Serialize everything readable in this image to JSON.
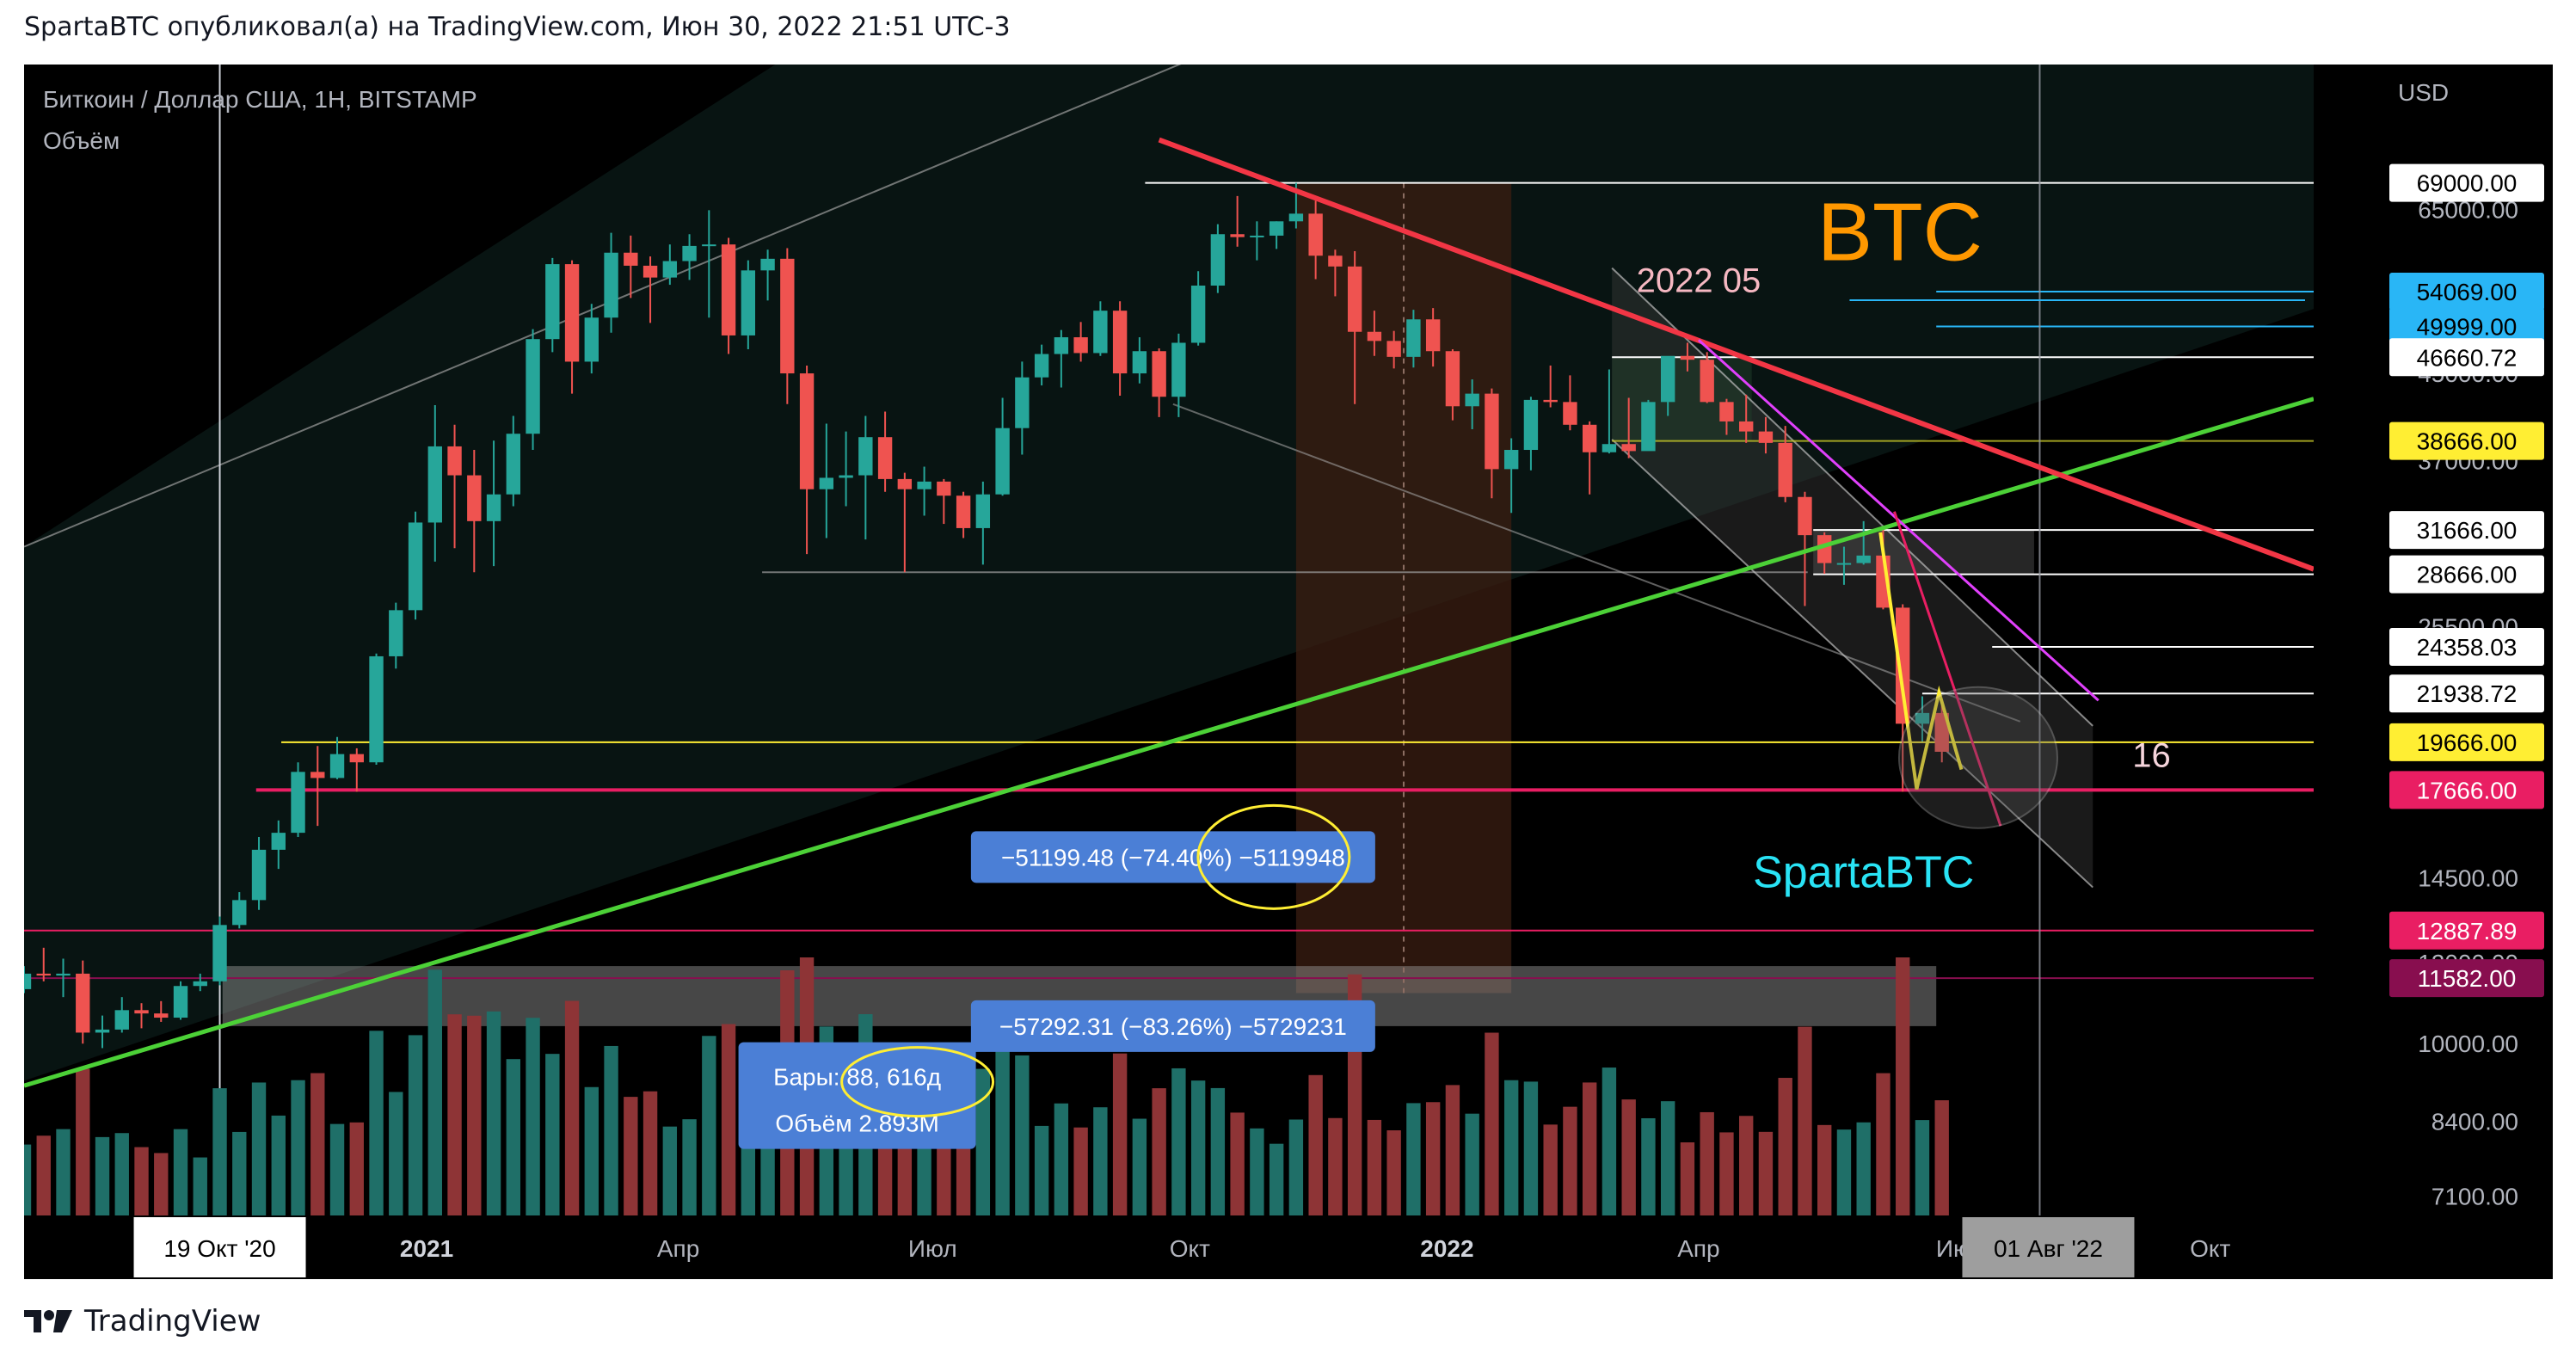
{
  "header": "SpartaBTC опубликовал(а) на TradingView.com, Июн 30, 2022 21:51 UTC-3",
  "footer_brand": "TradingView",
  "logo_icon": "tradingview-logo-icon",
  "colors": {
    "up": "#26a69a",
    "down": "#ef5350",
    "vol_up": "#1f6f68",
    "vol_down": "#8e3436",
    "trend_red": "#f23645",
    "trend_green": "#4cd137",
    "magenta": "#e040fb",
    "yellow": "#ffee33",
    "btc": "#ff9800",
    "sparta": "#29e3f5",
    "label_blue": "#4b7fd6",
    "pink": "#e91e63"
  },
  "chart_data": {
    "type": "candlestick",
    "symbol_line": "Биткоин / Доллар США, 1Н, BITSTAMP",
    "volume_label": "Объём",
    "currency": "USD",
    "y_scale": "log",
    "ylim": [
      6800,
      90000
    ],
    "x_start": "2020-08-10",
    "x_end": "2022-11-07",
    "x_ticks": [
      {
        "label": "2021",
        "date": "2021-01-01",
        "bold": true
      },
      {
        "label": "Апр",
        "date": "2021-04-01"
      },
      {
        "label": "Июл",
        "date": "2021-07-01"
      },
      {
        "label": "Окт",
        "date": "2021-10-01"
      },
      {
        "label": "2022",
        "date": "2022-01-01",
        "bold": true
      },
      {
        "label": "Апр",
        "date": "2022-04-01"
      },
      {
        "label": "Окт",
        "date": "2022-10-01"
      }
    ],
    "x_marker": {
      "label": "19 Окт '20",
      "date": "2020-10-19"
    },
    "x_cursor": {
      "label": "01 Авг '22",
      "date": "2022-08-01",
      "partial": "Ию"
    },
    "y_ticks": [
      65000,
      45000,
      37000,
      25500,
      14500,
      12000,
      10000,
      8400,
      7100
    ],
    "y_tick_labels": [
      "65000.00",
      "45000.00",
      "37000.00",
      "25500.00",
      "14500.00",
      "12000.00",
      "10000.00",
      "8400.00",
      "7100.00"
    ],
    "price_levels": [
      {
        "value": 69000,
        "label": "69000.00",
        "bg": "#ffffff",
        "fg": "#000000",
        "line": "#ffffff",
        "from": "2021-09-15"
      },
      {
        "value": 54069,
        "label": "54069.00",
        "bg": "#29b6f6",
        "fg": "#000000",
        "line": "#29b6f6",
        "from": "2022-06-25"
      },
      {
        "value": 49999,
        "label": "49999.00",
        "bg": "#29b6f6",
        "fg": "#000000",
        "line": "#29b6f6",
        "from": "2022-06-25"
      },
      {
        "value": 46660.72,
        "label": "46660.72",
        "bg": "#ffffff",
        "fg": "#000000",
        "line": "#ffffff",
        "from": "2022-03-01"
      },
      {
        "value": 38666,
        "label": "38666.00",
        "bg": "#ffee33",
        "fg": "#000000",
        "line": "#c6c628",
        "from": "2022-03-01"
      },
      {
        "value": 31666,
        "label": "31666.00",
        "bg": "#ffffff",
        "fg": "#000000",
        "line": "#ffffff",
        "from": "2022-05-12"
      },
      {
        "value": 28666,
        "label": "28666.00",
        "bg": "#ffffff",
        "fg": "#000000",
        "line": "#ffffff",
        "from": "2022-05-12"
      },
      {
        "value": 24358.03,
        "label": "24358.03",
        "bg": "#ffffff",
        "fg": "#000000",
        "line": "#ffffff",
        "from": "2022-07-15"
      },
      {
        "value": 21938.72,
        "label": "21938.72",
        "bg": "#ffffff",
        "fg": "#000000",
        "line": "#ffffff",
        "from": "2022-06-20"
      },
      {
        "value": 19666,
        "label": "19666.00",
        "bg": "#ffee33",
        "fg": "#000000",
        "line": "#ffee33",
        "from": "2020-11-10"
      },
      {
        "value": 17666,
        "label": "17666.00",
        "bg": "#e91e63",
        "fg": "#ffffff",
        "line": "#e91e63",
        "from": "2020-11-01"
      },
      {
        "value": 12887.89,
        "label": "12887.89",
        "bg": "#e91e63",
        "fg": "#ffffff",
        "line": "#e91e63",
        "from": "2020-08-10"
      },
      {
        "value": 11582,
        "label": "11582.00",
        "bg": "#880e4f",
        "fg": "#ffffff",
        "line": "#880e4f",
        "from": "2020-08-10"
      }
    ],
    "candles": [
      [
        "2020-08-10",
        11300,
        11900,
        11200,
        11700
      ],
      [
        "2020-08-17",
        11700,
        12400,
        11500,
        11650
      ],
      [
        "2020-08-24",
        11650,
        12100,
        11100,
        11700
      ],
      [
        "2020-08-31",
        11700,
        12050,
        10000,
        10250
      ],
      [
        "2020-09-07",
        10250,
        10650,
        9900,
        10320
      ],
      [
        "2020-09-14",
        10320,
        11100,
        10250,
        10780
      ],
      [
        "2020-09-21",
        10780,
        10950,
        10350,
        10700
      ],
      [
        "2020-09-28",
        10700,
        11000,
        10500,
        10600
      ],
      [
        "2020-10-05",
        10600,
        11500,
        10550,
        11380
      ],
      [
        "2020-10-12",
        11380,
        11700,
        11250,
        11500
      ],
      [
        "2020-10-19",
        11500,
        13300,
        11400,
        13050
      ],
      [
        "2020-10-26",
        13050,
        14050,
        12950,
        13800
      ],
      [
        "2020-11-02",
        13800,
        15900,
        13500,
        15450
      ],
      [
        "2020-11-09",
        15450,
        16500,
        14800,
        16050
      ],
      [
        "2020-11-16",
        16050,
        18800,
        15900,
        18400
      ],
      [
        "2020-11-23",
        18400,
        19500,
        16300,
        18150
      ],
      [
        "2020-11-30",
        18150,
        19900,
        18100,
        19150
      ],
      [
        "2020-12-07",
        19150,
        19400,
        17600,
        18800
      ],
      [
        "2020-12-14",
        18800,
        24000,
        18700,
        23850
      ],
      [
        "2020-12-21",
        23850,
        26900,
        23200,
        26450
      ],
      [
        "2020-12-28",
        26450,
        33000,
        25900,
        32200
      ],
      [
        "2021-01-04",
        32200,
        41900,
        29500,
        38200
      ],
      [
        "2021-01-11",
        38200,
        40100,
        30400,
        35800
      ],
      [
        "2021-01-18",
        35800,
        37900,
        28800,
        32300
      ],
      [
        "2021-01-25",
        32300,
        38700,
        29200,
        34300
      ],
      [
        "2021-02-01",
        34300,
        40900,
        33400,
        39300
      ],
      [
        "2021-02-08",
        39300,
        49700,
        37900,
        48600
      ],
      [
        "2021-02-15",
        48600,
        58300,
        47200,
        57500
      ],
      [
        "2021-02-22",
        57500,
        58000,
        43000,
        46200
      ],
      [
        "2021-03-01",
        46200,
        52600,
        45000,
        51000
      ],
      [
        "2021-03-08",
        51000,
        61700,
        49300,
        59000
      ],
      [
        "2021-03-15",
        59000,
        61300,
        53300,
        57300
      ],
      [
        "2021-03-22",
        57300,
        58500,
        50400,
        55800
      ],
      [
        "2021-03-29",
        55800,
        60100,
        54900,
        57900
      ],
      [
        "2021-04-05",
        57900,
        61500,
        55500,
        59900
      ],
      [
        "2021-04-12",
        59900,
        64900,
        51000,
        60100
      ],
      [
        "2021-04-19",
        60100,
        61000,
        47000,
        49000
      ],
      [
        "2021-04-26",
        49000,
        58000,
        47500,
        56700
      ],
      [
        "2021-05-03",
        56700,
        59400,
        53000,
        58200
      ],
      [
        "2021-05-10",
        58200,
        59600,
        42000,
        45000
      ],
      [
        "2021-05-17",
        45000,
        45800,
        30000,
        34700
      ],
      [
        "2021-05-24",
        34700,
        40200,
        31100,
        35600
      ],
      [
        "2021-05-31",
        35600,
        39500,
        33400,
        35800
      ],
      [
        "2021-06-07",
        35800,
        40900,
        31000,
        39000
      ],
      [
        "2021-06-14",
        39000,
        41300,
        34500,
        35500
      ],
      [
        "2021-06-21",
        35500,
        36000,
        28800,
        34700
      ],
      [
        "2021-06-28",
        34700,
        36500,
        32700,
        35300
      ],
      [
        "2021-07-05",
        35300,
        35500,
        32100,
        34200
      ],
      [
        "2021-07-12",
        34200,
        34500,
        31100,
        31800
      ],
      [
        "2021-07-19",
        31800,
        35300,
        29300,
        34300
      ],
      [
        "2021-07-26",
        34300,
        42600,
        34200,
        39800
      ],
      [
        "2021-08-02",
        39800,
        46200,
        37500,
        44600
      ],
      [
        "2021-08-09",
        44600,
        48000,
        43800,
        47000
      ],
      [
        "2021-08-16",
        47000,
        49600,
        43600,
        48800
      ],
      [
        "2021-08-23",
        48800,
        50500,
        46200,
        47100
      ],
      [
        "2021-08-30",
        47100,
        52900,
        46800,
        51800
      ],
      [
        "2021-09-06",
        51800,
        52900,
        42800,
        45000
      ],
      [
        "2021-09-13",
        45000,
        48800,
        44000,
        47300
      ],
      [
        "2021-09-20",
        47300,
        47600,
        40800,
        42700
      ],
      [
        "2021-09-27",
        42700,
        49200,
        40800,
        48200
      ],
      [
        "2021-10-04",
        48200,
        56600,
        47900,
        54800
      ],
      [
        "2021-10-11",
        54800,
        62900,
        53900,
        61500
      ],
      [
        "2021-10-18",
        61500,
        67000,
        59800,
        61100
      ],
      [
        "2021-10-25",
        61100,
        63300,
        58000,
        61300
      ],
      [
        "2021-11-01",
        61300,
        63300,
        59500,
        63300
      ],
      [
        "2021-11-08",
        63300,
        69000,
        62300,
        64400
      ],
      [
        "2021-11-15",
        64400,
        66300,
        55600,
        58600
      ],
      [
        "2021-11-22",
        58600,
        59400,
        53500,
        57200
      ],
      [
        "2021-11-29",
        57200,
        59200,
        42000,
        49400
      ],
      [
        "2021-12-06",
        49400,
        51800,
        46800,
        48400
      ],
      [
        "2021-12-13",
        48400,
        49500,
        45500,
        46700
      ],
      [
        "2021-12-20",
        46700,
        51900,
        45600,
        50800
      ],
      [
        "2021-12-27",
        50800,
        52100,
        45700,
        47300
      ],
      [
        "2022-01-03",
        47300,
        47500,
        40500,
        41800
      ],
      [
        "2022-01-10",
        41800,
        44400,
        39700,
        43000
      ],
      [
        "2022-01-17",
        43000,
        43500,
        34000,
        36300
      ],
      [
        "2022-01-24",
        36300,
        38900,
        32900,
        37900
      ],
      [
        "2022-01-31",
        37900,
        42700,
        36200,
        42400
      ],
      [
        "2022-02-07",
        42400,
        45800,
        41700,
        42200
      ],
      [
        "2022-02-14",
        42200,
        44800,
        39600,
        40100
      ],
      [
        "2022-02-21",
        40100,
        40400,
        34300,
        37700
      ],
      [
        "2022-02-28",
        37700,
        45400,
        37600,
        38400
      ],
      [
        "2022-03-07",
        38400,
        42600,
        37200,
        37800
      ],
      [
        "2022-03-14",
        37800,
        42400,
        38200,
        42200
      ],
      [
        "2022-03-21",
        42200,
        46700,
        40900,
        46800
      ],
      [
        "2022-03-28",
        46800,
        48200,
        45200,
        46400
      ],
      [
        "2022-04-04",
        46400,
        47200,
        42100,
        42200
      ],
      [
        "2022-04-11",
        42200,
        42500,
        39200,
        40400
      ],
      [
        "2022-04-18",
        40400,
        42900,
        38500,
        39500
      ],
      [
        "2022-04-25",
        39500,
        40800,
        37600,
        38500
      ],
      [
        "2022-05-02",
        38500,
        40000,
        33700,
        34100
      ],
      [
        "2022-05-09",
        34100,
        34500,
        26700,
        31300
      ],
      [
        "2022-05-16",
        31300,
        31500,
        28700,
        29400
      ],
      [
        "2022-05-23",
        29400,
        30500,
        28000,
        29400
      ],
      [
        "2022-05-30",
        29400,
        32300,
        29300,
        29900
      ],
      [
        "2022-06-06",
        29900,
        31700,
        26500,
        26600
      ],
      [
        "2022-06-13",
        26600,
        26800,
        17600,
        20500
      ],
      [
        "2022-06-20",
        20500,
        21800,
        19700,
        21000
      ],
      [
        "2022-06-27",
        21000,
        21500,
        18800,
        19250
      ]
    ],
    "volumes_visible_note": "volume bars derived from candles",
    "measure_boxes": [
      {
        "text": "−51199.48 (−74.40%) −5119948",
        "price": 15200,
        "date": "2021-09-25"
      },
      {
        "text": "−57292.31 (−83.26%) −5729231",
        "price": 10400,
        "date": "2021-09-25"
      }
    ],
    "info_box": {
      "bars": "Бары: 88, 616д",
      "volume": "Объём 2.893M",
      "price": 8900,
      "date": "2021-06-04"
    },
    "annotations": [
      {
        "text": "2022 05",
        "date": "2022-04-01",
        "price": 54000,
        "color": "#f6b8c2"
      },
      {
        "text": "BTC",
        "date": "2022-06-12",
        "price": 58000,
        "color": "#ff9800"
      },
      {
        "text": "SpartaBTC",
        "date": "2022-05-30",
        "price": 14200,
        "color": "#29e3f5"
      },
      {
        "text": "16",
        "date": "2022-09-10",
        "price": 18600,
        "color": "#f6d5dc"
      }
    ]
  }
}
